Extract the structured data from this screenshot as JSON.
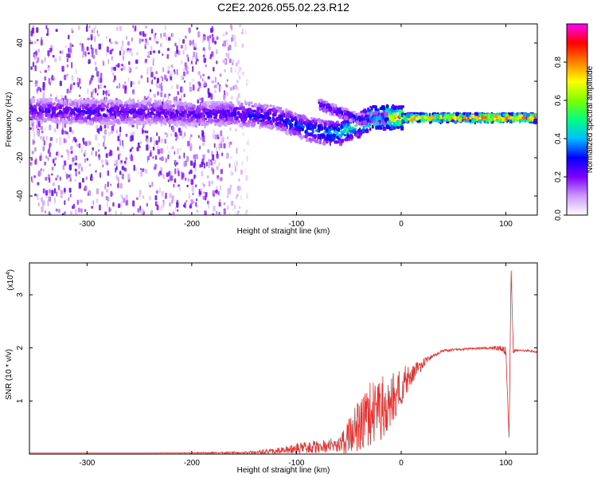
{
  "title": "C2E2.2026.055.02.23.R12",
  "colors": {
    "axis": "#000000",
    "snr_line": "#e8302e",
    "background": "#ffffff"
  },
  "chart_data": [
    {
      "type": "heatmap",
      "title": "C2E2.2026.055.02.23.R12",
      "xlabel": "Height of straight line (km)",
      "ylabel": "Frequency (Hz)",
      "xlim": [
        -355,
        130
      ],
      "ylim": [
        -50,
        50
      ],
      "xticks": [
        -300,
        -200,
        -100,
        0,
        100
      ],
      "yticks": [
        -40,
        -20,
        0,
        20,
        40
      ],
      "grid": false,
      "colorbar": {
        "label": "Normalized spectral amplitude",
        "range": [
          0,
          1
        ],
        "ticks": [
          0.0,
          0.2,
          0.4,
          0.6,
          0.8
        ],
        "colormap": [
          "#ffffff",
          "#cc99ff",
          "#7f00ff",
          "#0000ff",
          "#00bfff",
          "#00ff7f",
          "#7fff00",
          "#ffff00",
          "#ff7f00",
          "#ff0000",
          "#ff00ff"
        ]
      },
      "ridge": {
        "x": [
          -355,
          -300,
          -250,
          -200,
          -150,
          -120,
          -100,
          -90,
          -80,
          -70,
          -60,
          -50,
          -40,
          -30,
          -20,
          0,
          50,
          100,
          130
        ],
        "y": [
          5,
          4,
          4,
          3,
          3,
          1,
          -3,
          -5,
          -6,
          -7,
          -7,
          -4,
          -2,
          1,
          1.5,
          1,
          1,
          1,
          1
        ],
        "strength": [
          0.25,
          0.28,
          0.25,
          0.25,
          0.3,
          0.32,
          0.35,
          0.38,
          0.4,
          0.45,
          0.5,
          0.55,
          0.6,
          0.7,
          0.75,
          0.82,
          0.9,
          0.97,
          0.98
        ]
      },
      "secondary_ridge": {
        "x": [
          -80,
          -60,
          -40,
          -30,
          -15
        ],
        "y": [
          8,
          4,
          0,
          1,
          1
        ],
        "strength": [
          0.3,
          0.32,
          0.35,
          0.4,
          0.45
        ]
      },
      "noise_region_x": [
        -355,
        -180
      ]
    },
    {
      "type": "line",
      "xlabel": "Height of straight line (km)",
      "ylabel": "SNR (10 * v/v)",
      "y_multiplier": "(x10",
      "y_multiplier_exp": "4",
      "y_multiplier_close": ")",
      "xlim": [
        -355,
        130
      ],
      "ylim": [
        0,
        3.6
      ],
      "xticks": [
        -300,
        -200,
        -100,
        0,
        100
      ],
      "yticks": [
        1,
        2,
        3
      ],
      "grid": false,
      "series": [
        {
          "x": [
            -355,
            -250,
            -150,
            -120,
            -100,
            -80,
            -60,
            -50,
            -40,
            -30,
            -20,
            -10,
            0,
            10,
            20,
            30,
            40,
            60,
            80,
            95,
            100,
            103,
            105,
            107,
            110,
            120,
            130
          ],
          "y": [
            0.02,
            0.02,
            0.03,
            0.06,
            0.12,
            0.15,
            0.18,
            0.35,
            0.6,
            0.8,
            0.9,
            1.1,
            1.3,
            1.5,
            1.7,
            1.85,
            1.95,
            1.98,
            2.0,
            2.0,
            1.95,
            0.3,
            3.5,
            1.95,
            1.95,
            1.95,
            1.92
          ],
          "noise_amplitude": [
            0.0,
            0.0,
            0.02,
            0.05,
            0.1,
            0.12,
            0.15,
            0.35,
            0.5,
            0.6,
            0.6,
            0.5,
            0.4,
            0.2,
            0.1,
            0.04,
            0.03,
            0.02,
            0.02,
            0.05,
            0.1,
            0.0,
            0.0,
            0.05,
            0.02,
            0.02,
            0.02
          ]
        }
      ]
    }
  ]
}
